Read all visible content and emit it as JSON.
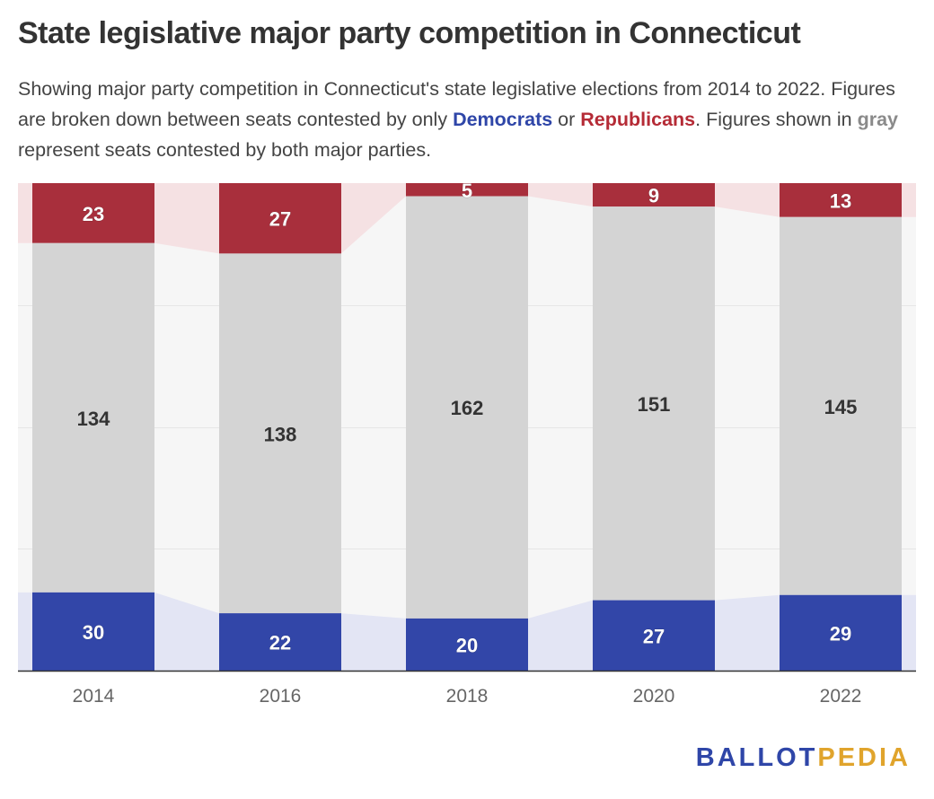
{
  "title": "State legislative major party competition in Connecticut",
  "subtitle": {
    "part1": "Showing major party competition in Connecticut's state legislative elections from 2014 to 2022. Figures are broken down between seats contested by only ",
    "dem_word": "Democrats",
    "part2": " or ",
    "rep_word": "Republicans",
    "part3": ". Figures shown in ",
    "gray_word": "gray",
    "part4": " represent seats contested by both major parties."
  },
  "colors": {
    "democrats": "#3246a8",
    "republicans": "#a82f3c",
    "both": "#d4d4d4",
    "democrats_band": "#e3e5f4",
    "republicans_band": "#f5e1e3",
    "both_band": "#f6f6f6"
  },
  "chart_data": {
    "type": "bar",
    "stacked": true,
    "normalized": true,
    "categories": [
      "2014",
      "2016",
      "2018",
      "2020",
      "2022"
    ],
    "series": [
      {
        "name": "Democrats",
        "values": [
          30,
          22,
          20,
          27,
          29
        ]
      },
      {
        "name": "Both major parties",
        "values": [
          134,
          138,
          162,
          151,
          145
        ]
      },
      {
        "name": "Republicans",
        "values": [
          23,
          27,
          5,
          9,
          13
        ]
      }
    ],
    "title": "State legislative major party competition in Connecticut",
    "xlabel": "",
    "ylabel": "",
    "grid": true
  },
  "logo": {
    "ballot": "BALLOT",
    "pedia": "PEDIA"
  }
}
